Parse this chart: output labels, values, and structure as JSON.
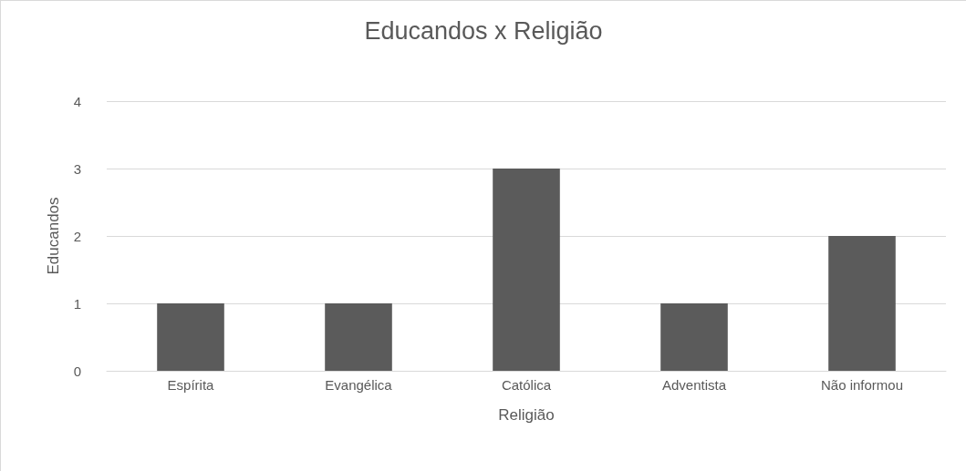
{
  "chart_data": {
    "type": "bar",
    "title": "Educandos x Religião",
    "xlabel": "Religião",
    "ylabel": "Educandos",
    "categories": [
      "Espírita",
      "Evangélica",
      "Católica",
      "Adventista",
      "Não informou"
    ],
    "values": [
      1,
      1,
      3,
      1,
      2
    ],
    "color": "#5b5b5b",
    "ylim": [
      0,
      4
    ],
    "yticks": [
      0,
      1,
      2,
      3,
      4
    ],
    "grid": "y"
  }
}
